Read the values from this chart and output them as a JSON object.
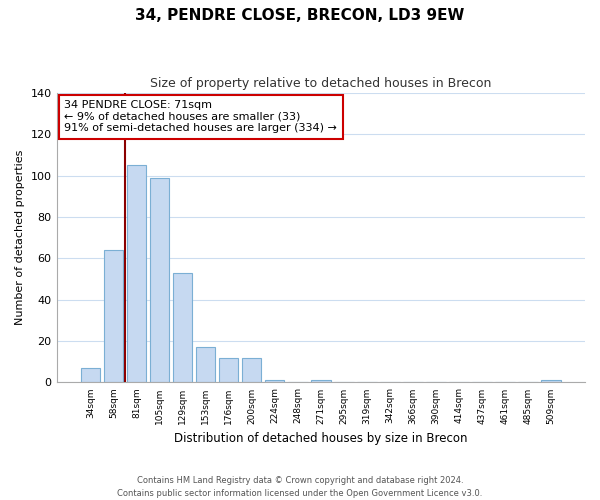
{
  "title": "34, PENDRE CLOSE, BRECON, LD3 9EW",
  "subtitle": "Size of property relative to detached houses in Brecon",
  "xlabel": "Distribution of detached houses by size in Brecon",
  "ylabel": "Number of detached properties",
  "bar_labels": [
    "34sqm",
    "58sqm",
    "81sqm",
    "105sqm",
    "129sqm",
    "153sqm",
    "176sqm",
    "200sqm",
    "224sqm",
    "248sqm",
    "271sqm",
    "295sqm",
    "319sqm",
    "342sqm",
    "366sqm",
    "390sqm",
    "414sqm",
    "437sqm",
    "461sqm",
    "485sqm",
    "509sqm"
  ],
  "bar_values": [
    7,
    64,
    105,
    99,
    53,
    17,
    12,
    12,
    1,
    0,
    1,
    0,
    0,
    0,
    0,
    0,
    0,
    0,
    0,
    0,
    1
  ],
  "bar_color": "#c6d9f1",
  "bar_edge_color": "#7bafd4",
  "highlight_line_color": "#8b0000",
  "ylim": [
    0,
    140
  ],
  "yticks": [
    0,
    20,
    40,
    60,
    80,
    100,
    120,
    140
  ],
  "annotation_title": "34 PENDRE CLOSE: 71sqm",
  "annotation_line1": "← 9% of detached houses are smaller (33)",
  "annotation_line2": "91% of semi-detached houses are larger (334) →",
  "annotation_box_color": "#ffffff",
  "annotation_box_edge_color": "#cc0000",
  "footer_line1": "Contains HM Land Registry data © Crown copyright and database right 2024.",
  "footer_line2": "Contains public sector information licensed under the Open Government Licence v3.0.",
  "background_color": "#ffffff",
  "grid_color": "#ccddf0"
}
